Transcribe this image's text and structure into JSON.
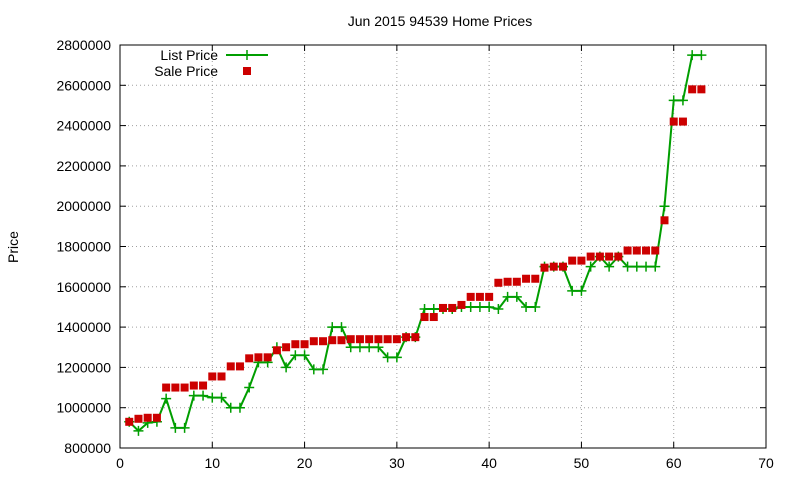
{
  "chart_data": {
    "type": "line",
    "title": "Jun 2015 94539 Home Prices",
    "ylabel": "Price",
    "xlabel": "",
    "xlim": [
      0,
      70
    ],
    "ylim": [
      800000,
      2800000
    ],
    "x_ticks": [
      0,
      10,
      20,
      30,
      40,
      50,
      60,
      70
    ],
    "y_ticks": [
      800000,
      1000000,
      1200000,
      1400000,
      1600000,
      1800000,
      2000000,
      2200000,
      2400000,
      2600000,
      2800000
    ],
    "grid": true,
    "legend_position": "top-left",
    "x": [
      1,
      2,
      3,
      4,
      5,
      6,
      7,
      8,
      9,
      10,
      11,
      12,
      13,
      14,
      15,
      16,
      17,
      18,
      19,
      20,
      21,
      22,
      23,
      24,
      25,
      26,
      27,
      28,
      29,
      30,
      31,
      32,
      33,
      34,
      35,
      36,
      37,
      38,
      39,
      40,
      41,
      42,
      43,
      44,
      45,
      46,
      47,
      48,
      49,
      50,
      51,
      52,
      53,
      54,
      55,
      56,
      57,
      58,
      59,
      60,
      61,
      62,
      63
    ],
    "series": [
      {
        "name": "List Price",
        "style": "line-plus",
        "color": "#009e00",
        "values": [
          930000,
          885000,
          925000,
          930000,
          1045000,
          900000,
          900000,
          1060000,
          1060000,
          1050000,
          1050000,
          1000000,
          1000000,
          1100000,
          1225000,
          1225000,
          1300000,
          1200000,
          1260000,
          1260000,
          1190000,
          1190000,
          1400000,
          1400000,
          1300000,
          1300000,
          1300000,
          1300000,
          1250000,
          1250000,
          1350000,
          1350000,
          1490000,
          1490000,
          1490000,
          1490000,
          1500000,
          1500000,
          1500000,
          1500000,
          1490000,
          1550000,
          1550000,
          1500000,
          1500000,
          1700000,
          1700000,
          1700000,
          1580000,
          1580000,
          1700000,
          1750000,
          1700000,
          1750000,
          1700000,
          1700000,
          1700000,
          1700000,
          2000000,
          2525000,
          2525000,
          2750000,
          2750000
        ]
      },
      {
        "name": "Sale Price",
        "style": "square",
        "color": "#cc0000",
        "values": [
          930000,
          945000,
          950000,
          950000,
          1100000,
          1100000,
          1100000,
          1110000,
          1110000,
          1155000,
          1155000,
          1205000,
          1205000,
          1245000,
          1250000,
          1250000,
          1285000,
          1300000,
          1315000,
          1315000,
          1330000,
          1330000,
          1335000,
          1335000,
          1340000,
          1340000,
          1340000,
          1340000,
          1340000,
          1340000,
          1350000,
          1350000,
          1450000,
          1450000,
          1495000,
          1495000,
          1510000,
          1550000,
          1550000,
          1550000,
          1620000,
          1625000,
          1625000,
          1640000,
          1640000,
          1695000,
          1700000,
          1700000,
          1730000,
          1730000,
          1750000,
          1750000,
          1750000,
          1750000,
          1780000,
          1780000,
          1780000,
          1780000,
          1930000,
          2420000,
          2420000,
          2580000,
          2580000
        ]
      }
    ]
  }
}
